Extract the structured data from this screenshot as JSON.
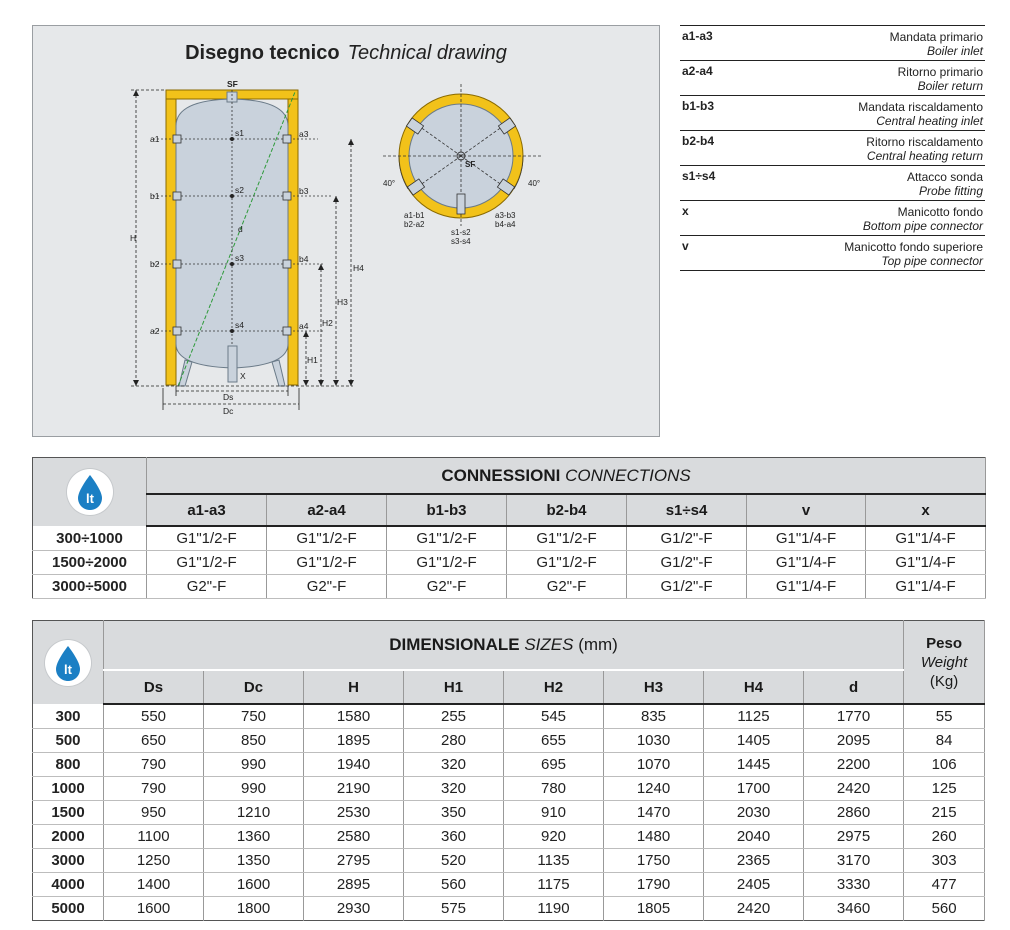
{
  "drawing": {
    "title_it": "Disegno tecnico",
    "title_en": "Technical drawing",
    "labels": {
      "sf": "SF",
      "a1": "a1",
      "b1": "b1",
      "b2": "b2",
      "a2": "a2",
      "a3": "a3",
      "b3": "b3",
      "b4": "b4",
      "a4": "a4",
      "s1": "s1",
      "s2": "s2",
      "s3": "s3",
      "s4": "s4",
      "d": "d",
      "x": "X",
      "h": "H",
      "h1": "H1",
      "h2": "H2",
      "h3": "H3",
      "h4": "H4",
      "ds": "Ds",
      "dc": "Dc"
    },
    "top_view": {
      "sf": "SF",
      "angle_left": "40°",
      "angle_right": "40°",
      "left_pair_1": "a1-b1",
      "left_pair_2": "b2-a2",
      "center_pair_1": "s1-s2",
      "center_pair_2": "s3-s4",
      "right_pair_1": "a3-b3",
      "right_pair_2": "b4-a4"
    },
    "colors": {
      "insulation": "#f2c21a",
      "insulation_edge": "#8a6a00",
      "tank": "#c9d2dc",
      "diagonal": "#2e9a3a"
    }
  },
  "legend": [
    {
      "code": "a1-a3",
      "it": "Mandata primario",
      "en": "Boiler inlet"
    },
    {
      "code": "a2-a4",
      "it": "Ritorno primario",
      "en": "Boiler return"
    },
    {
      "code": "b1-b3",
      "it": "Mandata riscaldamento",
      "en": "Central heating inlet"
    },
    {
      "code": "b2-b4",
      "it": "Ritorno riscaldamento",
      "en": "Central heating return"
    },
    {
      "code": "s1÷s4",
      "it": "Attacco sonda",
      "en": "Probe fitting"
    },
    {
      "code": "x",
      "it": "Manicotto fondo",
      "en": "Bottom pipe connector"
    },
    {
      "code": "v",
      "it": "Manicotto fondo superiore",
      "en": "Top pipe connector"
    }
  ],
  "connections": {
    "title_it": "CONNESSIONI",
    "title_en": "CONNECTIONS",
    "badge": "lt",
    "columns": [
      "a1-a3",
      "a2-a4",
      "b1-b3",
      "b2-b4",
      "s1÷s4",
      "v",
      "x"
    ],
    "rows": [
      {
        "label": "300÷1000",
        "values": [
          "G1\"1/2-F",
          "G1\"1/2-F",
          "G1\"1/2-F",
          "G1\"1/2-F",
          "G1/2\"-F",
          "G1\"1/4-F",
          "G1\"1/4-F"
        ]
      },
      {
        "label": "1500÷2000",
        "values": [
          "G1\"1/2-F",
          "G1\"1/2-F",
          "G1\"1/2-F",
          "G1\"1/2-F",
          "G1/2\"-F",
          "G1\"1/4-F",
          "G1\"1/4-F"
        ]
      },
      {
        "label": "3000÷5000",
        "values": [
          "G2\"-F",
          "G2\"-F",
          "G2\"-F",
          "G2\"-F",
          "G1/2\"-F",
          "G1\"1/4-F",
          "G1\"1/4-F"
        ]
      }
    ]
  },
  "dimensions": {
    "title_it": "DIMENSIONALE",
    "title_en": "SIZES",
    "title_unit": "(mm)",
    "badge": "lt",
    "weight_it": "Peso",
    "weight_en": "Weight",
    "weight_unit": "(Kg)",
    "columns": [
      "Ds",
      "Dc",
      "H",
      "H1",
      "H2",
      "H3",
      "H4",
      "d"
    ],
    "rows": [
      {
        "label": "300",
        "values": [
          "550",
          "750",
          "1580",
          "255",
          "545",
          "835",
          "1125",
          "1770"
        ],
        "weight": "55"
      },
      {
        "label": "500",
        "values": [
          "650",
          "850",
          "1895",
          "280",
          "655",
          "1030",
          "1405",
          "2095"
        ],
        "weight": "84"
      },
      {
        "label": "800",
        "values": [
          "790",
          "990",
          "1940",
          "320",
          "695",
          "1070",
          "1445",
          "2200"
        ],
        "weight": "106"
      },
      {
        "label": "1000",
        "values": [
          "790",
          "990",
          "2190",
          "320",
          "780",
          "1240",
          "1700",
          "2420"
        ],
        "weight": "125"
      },
      {
        "label": "1500",
        "values": [
          "950",
          "1210",
          "2530",
          "350",
          "910",
          "1470",
          "2030",
          "2860"
        ],
        "weight": "215"
      },
      {
        "label": "2000",
        "values": [
          "1100",
          "1360",
          "2580",
          "360",
          "920",
          "1480",
          "2040",
          "2975"
        ],
        "weight": "260"
      },
      {
        "label": "3000",
        "values": [
          "1250",
          "1350",
          "2795",
          "520",
          "1135",
          "1750",
          "2365",
          "3170"
        ],
        "weight": "303"
      },
      {
        "label": "4000",
        "values": [
          "1400",
          "1600",
          "2895",
          "560",
          "1175",
          "1790",
          "2405",
          "3330"
        ],
        "weight": "477"
      },
      {
        "label": "5000",
        "values": [
          "1600",
          "1800",
          "2930",
          "575",
          "1190",
          "1805",
          "2420",
          "3460"
        ],
        "weight": "560"
      }
    ]
  }
}
